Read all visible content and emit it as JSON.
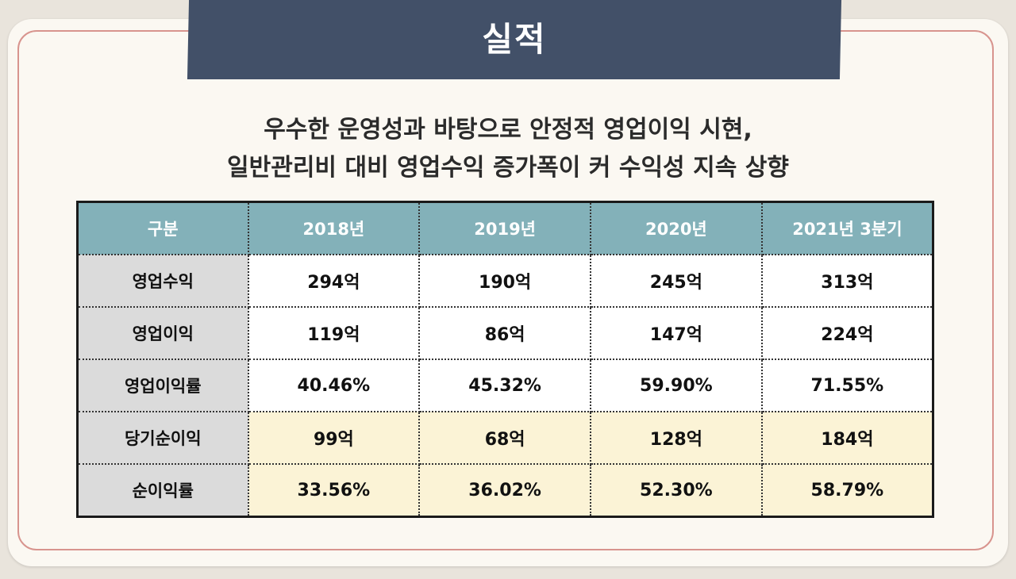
{
  "slide": {
    "title": "실적",
    "subtitle_lines": [
      "우수한 운영성과 바탕으로 안정적 영업이익 시현,",
      "일반관리비 대비 영업수익 증가폭이 커 수익성 지속 상향"
    ]
  },
  "table": {
    "headers": [
      "구분",
      "2018년",
      "2019년",
      "2020년",
      "2021년 3분기"
    ],
    "rows": [
      {
        "label": "영업수익",
        "values": [
          "294억",
          "190억",
          "245억",
          "313억"
        ]
      },
      {
        "label": "영업이익",
        "values": [
          "119억",
          "86억",
          "147억",
          "224억"
        ]
      },
      {
        "label": "영업이익률",
        "values": [
          "40.46%",
          "45.32%",
          "59.90%",
          "71.55%"
        ]
      },
      {
        "label": "당기순이익",
        "values": [
          "99억",
          "68억",
          "128억",
          "184억"
        ]
      },
      {
        "label": "순이익률",
        "values": [
          "33.56%",
          "36.02%",
          "52.30%",
          "58.79%"
        ]
      }
    ]
  },
  "colors": {
    "banner": "#425068",
    "header_bg": "#83b1b9",
    "row_label_bg": "#dbdbdb",
    "highlight_row_bg": "#fbf3d6",
    "frame_border": "#d8948e"
  }
}
